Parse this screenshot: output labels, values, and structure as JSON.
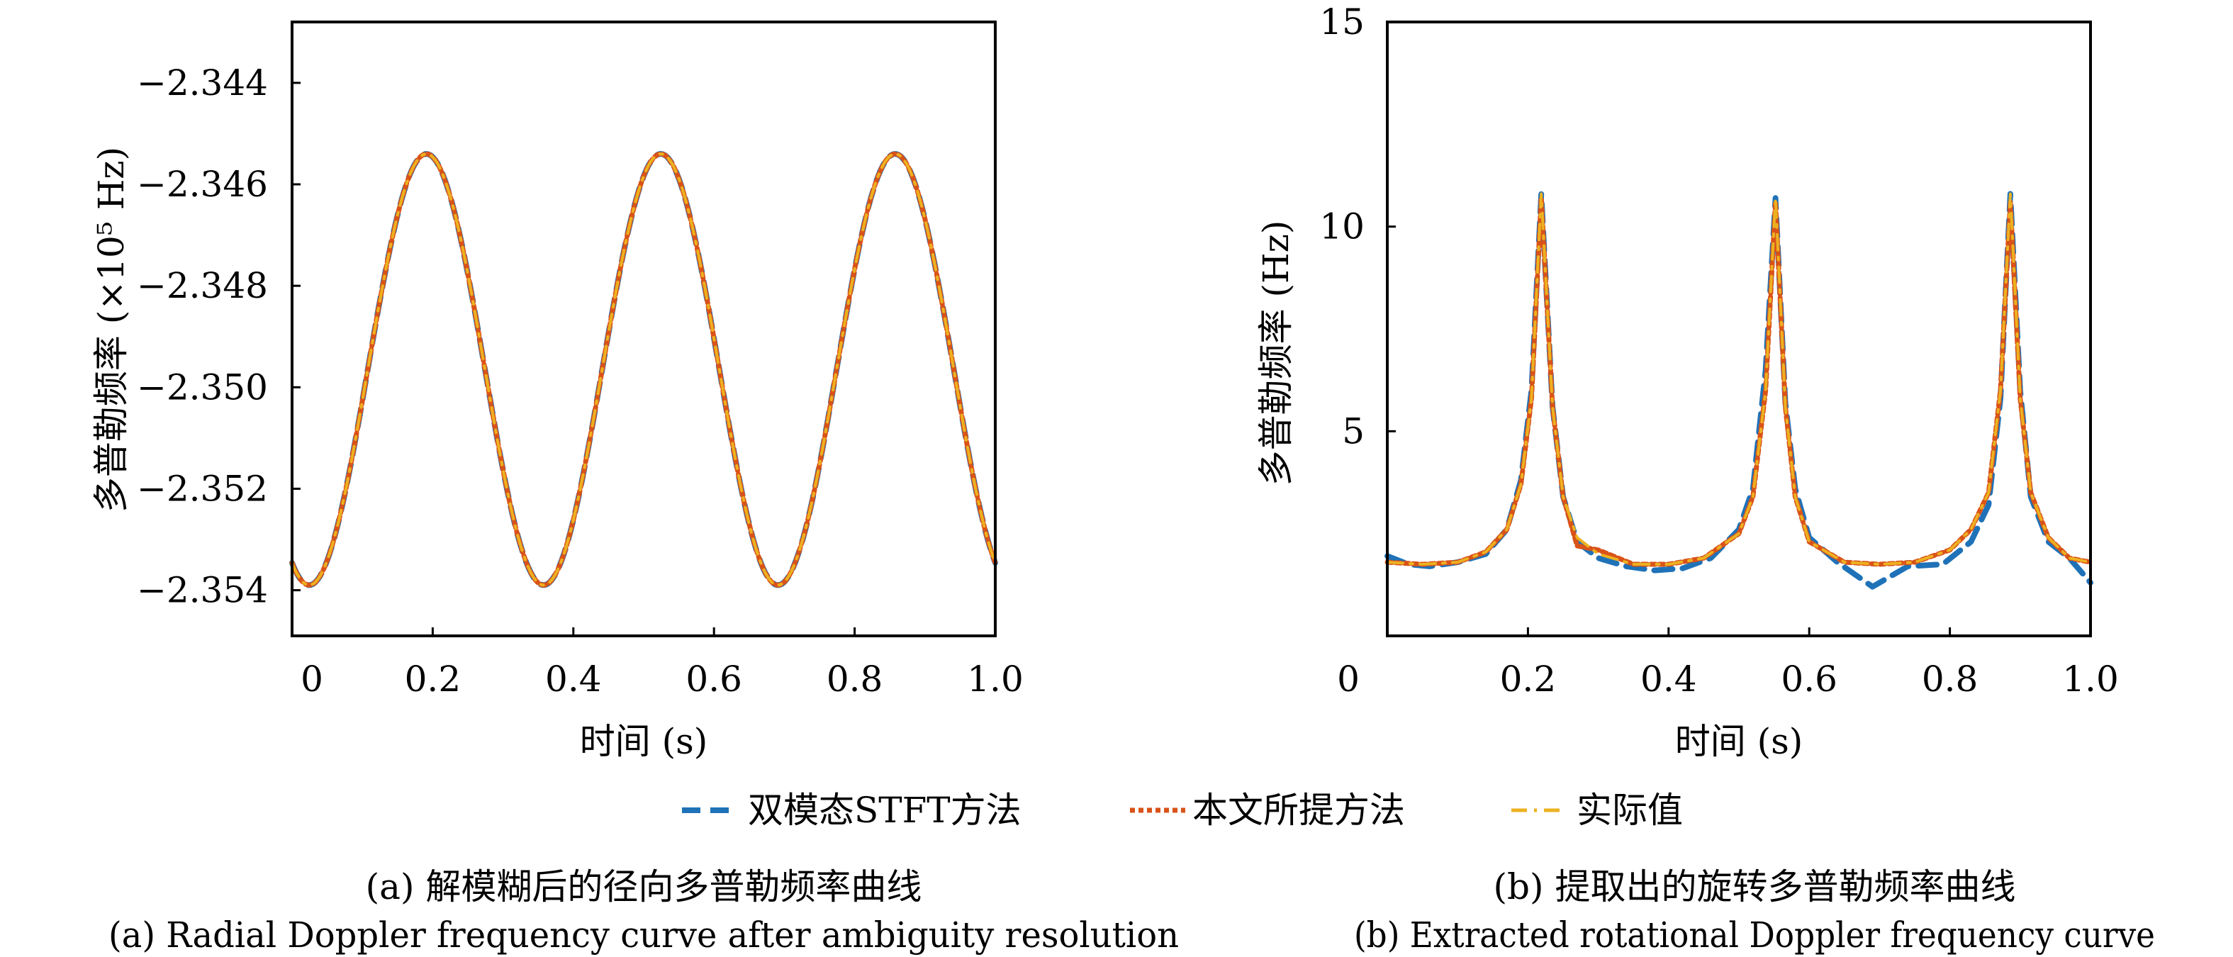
{
  "chart_data": [
    {
      "type": "line",
      "panel": "a",
      "title": "",
      "xlabel": "时间 (s)",
      "ylabel": "多普勒频率 (×10⁵ Hz)",
      "xlim": [
        0,
        1.0
      ],
      "ylim": [
        -2.3549,
        -2.3428
      ],
      "xticks": [
        0,
        0.2,
        0.4,
        0.6,
        0.8,
        1.0
      ],
      "xtick_labels": [
        "0",
        "0.2",
        "0.4",
        "0.6",
        "0.8",
        "1.0"
      ],
      "yticks": [
        -2.344,
        -2.346,
        -2.348,
        -2.35,
        -2.352,
        -2.354
      ],
      "ytick_labels": [
        "−2.344",
        "−2.346",
        "−2.348",
        "−2.350",
        "−2.352",
        "−2.354"
      ],
      "grid": false,
      "model": {
        "form": "sinusoid",
        "mean": -2.34965,
        "amplitude": 0.00425,
        "frequency_hz": 3.0,
        "peak_times": [
          0.191,
          0.524,
          0.858
        ]
      },
      "series": [
        {
          "name": "双模态STFT方法",
          "style": "dashed",
          "color": "#1f72b8",
          "x": [
            0,
            0.024,
            0.06,
            0.1,
            0.14,
            0.191,
            0.24,
            0.28,
            0.32,
            0.358,
            0.4,
            0.44,
            0.48,
            0.524,
            0.57,
            0.61,
            0.65,
            0.691,
            0.73,
            0.77,
            0.81,
            0.858,
            0.9,
            0.94,
            0.98,
            1.0
          ],
          "y": [
            -2.3535,
            -2.3539,
            -2.3527,
            -2.35,
            -2.3472,
            -2.3454,
            -2.3468,
            -2.3495,
            -2.3524,
            -2.3539,
            -2.3528,
            -2.3502,
            -2.3472,
            -2.3454,
            -2.3466,
            -2.3493,
            -2.3523,
            -2.3539,
            -2.353,
            -2.3505,
            -2.3475,
            -2.3454,
            -2.3464,
            -2.349,
            -2.352,
            -2.3534
          ]
        },
        {
          "name": "本文所提方法",
          "style": "dotted",
          "color": "#d95319",
          "x": [
            0,
            0.024,
            0.06,
            0.1,
            0.14,
            0.191,
            0.24,
            0.28,
            0.32,
            0.358,
            0.4,
            0.44,
            0.48,
            0.524,
            0.57,
            0.61,
            0.65,
            0.691,
            0.73,
            0.77,
            0.81,
            0.858,
            0.9,
            0.94,
            0.98,
            1.0
          ],
          "y": [
            -2.3535,
            -2.3539,
            -2.3527,
            -2.35,
            -2.3472,
            -2.3454,
            -2.3468,
            -2.3495,
            -2.3524,
            -2.3539,
            -2.3528,
            -2.3502,
            -2.3472,
            -2.3454,
            -2.3466,
            -2.3493,
            -2.3523,
            -2.3539,
            -2.353,
            -2.3505,
            -2.3475,
            -2.3454,
            -2.3464,
            -2.349,
            -2.352,
            -2.3534
          ]
        },
        {
          "name": "实际值",
          "style": "dashdot",
          "color": "#edb120",
          "x": [
            0,
            0.024,
            0.06,
            0.1,
            0.14,
            0.191,
            0.24,
            0.28,
            0.32,
            0.358,
            0.4,
            0.44,
            0.48,
            0.524,
            0.57,
            0.61,
            0.65,
            0.691,
            0.73,
            0.77,
            0.81,
            0.858,
            0.9,
            0.94,
            0.98,
            1.0
          ],
          "y": [
            -2.3535,
            -2.3539,
            -2.3527,
            -2.35,
            -2.3472,
            -2.3454,
            -2.3468,
            -2.3495,
            -2.3524,
            -2.3539,
            -2.3528,
            -2.3502,
            -2.3472,
            -2.3454,
            -2.3466,
            -2.3493,
            -2.3523,
            -2.3539,
            -2.353,
            -2.3505,
            -2.3475,
            -2.3454,
            -2.3464,
            -2.349,
            -2.352,
            -2.3534
          ]
        }
      ]
    },
    {
      "type": "line",
      "panel": "b",
      "title": "",
      "xlabel": "时间 (s)",
      "ylabel": "多普勒频率 (Hz)",
      "xlim": [
        0,
        1.0
      ],
      "ylim": [
        0,
        15
      ],
      "xticks": [
        0,
        0.2,
        0.4,
        0.6,
        0.8,
        1.0
      ],
      "xtick_labels": [
        "0",
        "0.2",
        "0.4",
        "0.6",
        "0.8",
        "1.0"
      ],
      "yticks": [
        15,
        10,
        5
      ],
      "ytick_labels": [
        "15",
        "10",
        "5"
      ],
      "grid": false,
      "model": {
        "form": "periodic-peaks",
        "baseline": 1.75,
        "peak_value": 10.8,
        "peak_times": [
          0.219,
          0.552,
          0.886
        ]
      },
      "series": [
        {
          "name": "双模态STFT方法",
          "style": "dashed-noisy",
          "color": "#1f72b8",
          "x": [
            0,
            0.03,
            0.06,
            0.1,
            0.14,
            0.17,
            0.19,
            0.205,
            0.219,
            0.235,
            0.25,
            0.27,
            0.3,
            0.34,
            0.38,
            0.42,
            0.46,
            0.5,
            0.52,
            0.538,
            0.552,
            0.566,
            0.58,
            0.6,
            0.64,
            0.69,
            0.74,
            0.79,
            0.83,
            0.855,
            0.872,
            0.886,
            0.9,
            0.915,
            0.94,
            0.97,
            1.0
          ],
          "y": [
            1.95,
            1.75,
            1.7,
            1.8,
            2.0,
            2.6,
            3.8,
            6.0,
            10.8,
            5.6,
            3.4,
            2.3,
            1.9,
            1.7,
            1.6,
            1.65,
            1.9,
            2.6,
            3.6,
            6.5,
            10.7,
            5.7,
            3.6,
            2.4,
            1.8,
            1.2,
            1.7,
            1.75,
            2.3,
            3.2,
            5.8,
            10.8,
            6.0,
            3.4,
            2.3,
            1.9,
            1.3
          ]
        },
        {
          "name": "本文所提方法",
          "style": "dotted",
          "color": "#d95319",
          "x": [
            0,
            0.05,
            0.1,
            0.14,
            0.17,
            0.19,
            0.205,
            0.219,
            0.235,
            0.25,
            0.27,
            0.3,
            0.35,
            0.4,
            0.45,
            0.5,
            0.52,
            0.538,
            0.552,
            0.566,
            0.58,
            0.6,
            0.65,
            0.7,
            0.75,
            0.8,
            0.83,
            0.855,
            0.872,
            0.886,
            0.9,
            0.915,
            0.94,
            0.97,
            1.0
          ],
          "y": [
            1.8,
            1.75,
            1.8,
            2.05,
            2.6,
            3.7,
            5.8,
            10.7,
            5.6,
            3.4,
            2.2,
            2.1,
            1.75,
            1.75,
            1.9,
            2.5,
            3.4,
            6.0,
            10.6,
            5.6,
            3.4,
            2.3,
            1.8,
            1.75,
            1.8,
            2.1,
            2.6,
            3.5,
            6.0,
            10.6,
            5.8,
            3.5,
            2.4,
            1.9,
            1.8
          ]
        },
        {
          "name": "实际值",
          "style": "dashdot",
          "color": "#edb120",
          "x": [
            0,
            0.05,
            0.1,
            0.14,
            0.17,
            0.19,
            0.205,
            0.219,
            0.235,
            0.25,
            0.27,
            0.3,
            0.35,
            0.4,
            0.45,
            0.5,
            0.52,
            0.538,
            0.552,
            0.566,
            0.58,
            0.6,
            0.65,
            0.7,
            0.75,
            0.8,
            0.83,
            0.855,
            0.872,
            0.886,
            0.9,
            0.915,
            0.94,
            0.97,
            1.0
          ],
          "y": [
            1.8,
            1.75,
            1.8,
            2.05,
            2.6,
            3.7,
            5.8,
            10.8,
            5.6,
            3.4,
            2.4,
            2.0,
            1.75,
            1.75,
            1.9,
            2.5,
            3.4,
            6.0,
            10.7,
            5.6,
            3.4,
            2.3,
            1.8,
            1.75,
            1.8,
            2.1,
            2.6,
            3.5,
            6.0,
            10.8,
            5.8,
            3.5,
            2.4,
            1.9,
            1.8
          ]
        }
      ]
    }
  ],
  "legend": {
    "placement": "bottom-center",
    "items": [
      {
        "label": "双模态STFT方法",
        "color": "#1f72b8",
        "style": "dashed"
      },
      {
        "label": "本文所提方法",
        "color": "#d95319",
        "style": "dotted"
      },
      {
        "label": "实际值",
        "color": "#edb120",
        "style": "dashdot"
      }
    ]
  },
  "captions": {
    "a_cn": "(a) 解模糊后的径向多普勒频率曲线",
    "a_en": "(a) Radial Doppler frequency curve after ambiguity resolution",
    "b_cn": "(b) 提取出的旋转多普勒频率曲线",
    "b_en": "(b) Extracted rotational Doppler frequency curve"
  }
}
